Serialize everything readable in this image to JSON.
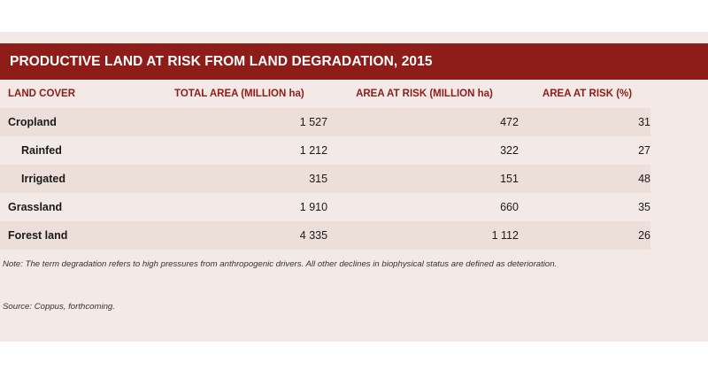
{
  "title": "PRODUCTIVE LAND AT RISK FROM LAND DEGRADATION, 2015",
  "columns": [
    "LAND COVER",
    "TOTAL AREA (MILLION ha)",
    "AREA AT RISK (MILLION ha)",
    "AREA AT RISK (%)"
  ],
  "rows": [
    {
      "label": "Cropland",
      "total": "1 527",
      "risk": "472",
      "pct": "31"
    },
    {
      "label": "Rainfed",
      "total": "1 212",
      "risk": "322",
      "pct": "27"
    },
    {
      "label": "Irrigated",
      "total": "315",
      "risk": "151",
      "pct": "48"
    },
    {
      "label": "Grassland",
      "total": "1 910",
      "risk": "660",
      "pct": "35"
    },
    {
      "label": "Forest land",
      "total": "4 335",
      "risk": "1 112",
      "pct": "26"
    }
  ],
  "note": "Note: The term degradation refers to high pressures from anthropogenic drivers. All other declines in biophysical status are defined as deterioration.",
  "source": "Source: Coppus, forthcoming.",
  "colors": {
    "accent": "#8e1c18",
    "panel": "#f3e9e6",
    "band": "#ecdfda"
  }
}
